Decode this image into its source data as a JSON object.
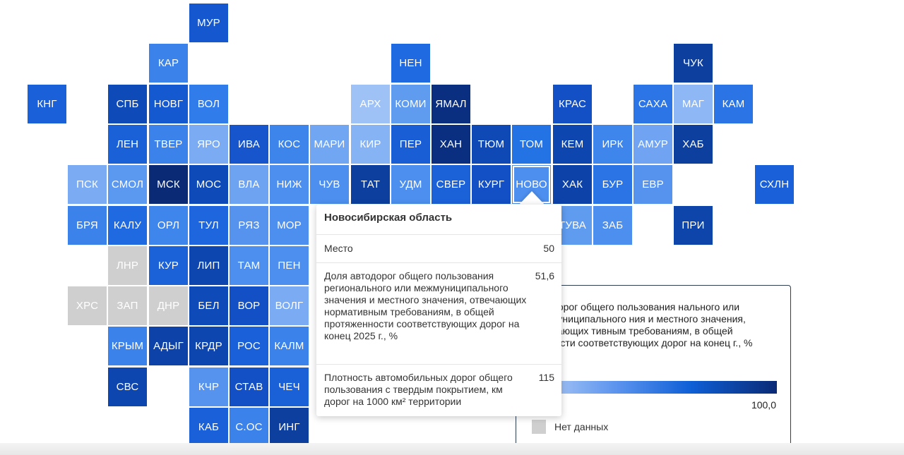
{
  "tiles": [
    {
      "code": "МУР",
      "col": 4,
      "row": 0,
      "color": "#1457cf"
    },
    {
      "code": "КАР",
      "col": 3,
      "row": 1,
      "color": "#3b83ea"
    },
    {
      "code": "НЕН",
      "col": 9,
      "row": 1,
      "color": "#1f6ae0"
    },
    {
      "code": "ЧУК",
      "col": 16,
      "row": 1,
      "color": "#0c3f9e"
    },
    {
      "code": "КНГ",
      "col": 0,
      "row": 2,
      "color": "#1a60d8"
    },
    {
      "code": "СПБ",
      "col": 2,
      "row": 2,
      "color": "#0e4bb8"
    },
    {
      "code": "НОВГ",
      "col": 3,
      "row": 2,
      "color": "#1459cf"
    },
    {
      "code": "ВОЛ",
      "col": 4,
      "row": 2,
      "color": "#2f7cea"
    },
    {
      "code": "АРХ",
      "col": 8,
      "row": 2,
      "color": "#9ec2f6"
    },
    {
      "code": "КОМИ",
      "col": 9,
      "row": 2,
      "color": "#5f9bef"
    },
    {
      "code": "ЯМАЛ",
      "col": 10,
      "row": 2,
      "color": "#0b2f80"
    },
    {
      "code": "КРАС",
      "col": 13,
      "row": 2,
      "color": "#1350c6"
    },
    {
      "code": "САХА",
      "col": 15,
      "row": 2,
      "color": "#2c75e6"
    },
    {
      "code": "МАГ",
      "col": 16,
      "row": 2,
      "color": "#8eb8f5"
    },
    {
      "code": "КАМ",
      "col": 17,
      "row": 2,
      "color": "#2a74e6"
    },
    {
      "code": "ЛЕН",
      "col": 2,
      "row": 3,
      "color": "#1a61d8"
    },
    {
      "code": "ТВЕР",
      "col": 3,
      "row": 3,
      "color": "#3b83ea"
    },
    {
      "code": "ЯРО",
      "col": 4,
      "row": 3,
      "color": "#7aabf3"
    },
    {
      "code": "ИВА",
      "col": 5,
      "row": 3,
      "color": "#1655cb"
    },
    {
      "code": "КОС",
      "col": 6,
      "row": 3,
      "color": "#3d85eb"
    },
    {
      "code": "МАРИ",
      "col": 7,
      "row": 3,
      "color": "#71a6f2"
    },
    {
      "code": "КИР",
      "col": 8,
      "row": 3,
      "color": "#86b3f4"
    },
    {
      "code": "ПЕР",
      "col": 9,
      "row": 3,
      "color": "#1a5ed6"
    },
    {
      "code": "ХАН",
      "col": 10,
      "row": 3,
      "color": "#0b2f80"
    },
    {
      "code": "ТЮМ",
      "col": 11,
      "row": 3,
      "color": "#0f49b6"
    },
    {
      "code": "ТОМ",
      "col": 12,
      "row": 3,
      "color": "#2473e4"
    },
    {
      "code": "КЕМ",
      "col": 13,
      "row": 3,
      "color": "#0e46b0"
    },
    {
      "code": "ИРК",
      "col": 14,
      "row": 3,
      "color": "#3e86ec"
    },
    {
      "code": "АМУР",
      "col": 15,
      "row": 3,
      "color": "#70a4f2"
    },
    {
      "code": "ХАБ",
      "col": 16,
      "row": 3,
      "color": "#0c3f9e"
    },
    {
      "code": "ПСК",
      "col": 1,
      "row": 4,
      "color": "#7aabf3"
    },
    {
      "code": "СМОЛ",
      "col": 2,
      "row": 4,
      "color": "#5b98ef"
    },
    {
      "code": "МСК",
      "col": 3,
      "row": 4,
      "color": "#0a2a75"
    },
    {
      "code": "МОС",
      "col": 4,
      "row": 4,
      "color": "#0e4bb8"
    },
    {
      "code": "ВЛА",
      "col": 5,
      "row": 4,
      "color": "#6ea3f2"
    },
    {
      "code": "НИЖ",
      "col": 6,
      "row": 4,
      "color": "#4d8fee"
    },
    {
      "code": "ЧУВ",
      "col": 7,
      "row": 4,
      "color": "#4d8fee"
    },
    {
      "code": "ТАТ",
      "col": 8,
      "row": 4,
      "color": "#0c3f9e"
    },
    {
      "code": "УДМ",
      "col": 9,
      "row": 4,
      "color": "#4d8fee"
    },
    {
      "code": "СВЕР",
      "col": 10,
      "row": 4,
      "color": "#1b62d9"
    },
    {
      "code": "КУРГ",
      "col": 11,
      "row": 4,
      "color": "#1350c6"
    },
    {
      "code": "НОВО",
      "col": 12,
      "row": 4,
      "color": "#4d8fee",
      "active": true
    },
    {
      "code": "ХАК",
      "col": 13,
      "row": 4,
      "color": "#0d42a8"
    },
    {
      "code": "БУР",
      "col": 14,
      "row": 4,
      "color": "#2a74e6"
    },
    {
      "code": "ЕВР",
      "col": 15,
      "row": 4,
      "color": "#5593ee"
    },
    {
      "code": "СХЛН",
      "col": 18,
      "row": 4,
      "color": "#1a60d8"
    },
    {
      "code": "БРЯ",
      "col": 1,
      "row": 5,
      "color": "#3b83ea"
    },
    {
      "code": "КАЛУ",
      "col": 2,
      "row": 5,
      "color": "#1f6ae0"
    },
    {
      "code": "ОРЛ",
      "col": 3,
      "row": 5,
      "color": "#3e86ec"
    },
    {
      "code": "ТУЛ",
      "col": 4,
      "row": 5,
      "color": "#1e66dd"
    },
    {
      "code": "РЯЗ",
      "col": 5,
      "row": 5,
      "color": "#5593ee"
    },
    {
      "code": "МОР",
      "col": 6,
      "row": 5,
      "color": "#4d8fee"
    },
    {
      "code": "ТУВА",
      "col": 13,
      "row": 5,
      "color": "#5f9bef"
    },
    {
      "code": "ЗАБ",
      "col": 14,
      "row": 5,
      "color": "#4d8fee"
    },
    {
      "code": "ПРИ",
      "col": 16,
      "row": 5,
      "color": "#0d45ab"
    },
    {
      "code": "ЛНР",
      "col": 2,
      "row": 6,
      "color": "#cfcfcf"
    },
    {
      "code": "КУР",
      "col": 3,
      "row": 6,
      "color": "#1b62d9"
    },
    {
      "code": "ЛИП",
      "col": 4,
      "row": 6,
      "color": "#0e46b0"
    },
    {
      "code": "ТАМ",
      "col": 5,
      "row": 6,
      "color": "#4d8fee"
    },
    {
      "code": "ПЕН",
      "col": 6,
      "row": 6,
      "color": "#4d8fee"
    },
    {
      "code": "ХРС",
      "col": 1,
      "row": 7,
      "color": "#cfcfcf"
    },
    {
      "code": "ЗАП",
      "col": 2,
      "row": 7,
      "color": "#cfcfcf"
    },
    {
      "code": "ДНР",
      "col": 3,
      "row": 7,
      "color": "#cfcfcf"
    },
    {
      "code": "БЕЛ",
      "col": 4,
      "row": 7,
      "color": "#0e4bb8"
    },
    {
      "code": "ВОР",
      "col": 5,
      "row": 7,
      "color": "#1350c6"
    },
    {
      "code": "ВОЛГ",
      "col": 6,
      "row": 7,
      "color": "#7aabf3"
    },
    {
      "code": "КРЫМ",
      "col": 2,
      "row": 8,
      "color": "#3b83ea"
    },
    {
      "code": "АДЫГ",
      "col": 3,
      "row": 8,
      "color": "#0d42a8"
    },
    {
      "code": "КРДР",
      "col": 4,
      "row": 8,
      "color": "#0e46b0"
    },
    {
      "code": "РОС",
      "col": 5,
      "row": 8,
      "color": "#1a60d8"
    },
    {
      "code": "КАЛМ",
      "col": 6,
      "row": 8,
      "color": "#3b83ea"
    },
    {
      "code": "СВС",
      "col": 2,
      "row": 9,
      "color": "#0e46b0"
    },
    {
      "code": "КЧР",
      "col": 4,
      "row": 9,
      "color": "#5593ee"
    },
    {
      "code": "СТАВ",
      "col": 5,
      "row": 9,
      "color": "#1350c6"
    },
    {
      "code": "ЧЕЧ",
      "col": 6,
      "row": 9,
      "color": "#1a61d8"
    },
    {
      "code": "КАБ",
      "col": 4,
      "row": 10,
      "color": "#1a60d8"
    },
    {
      "code": "С.ОС",
      "col": 5,
      "row": 10,
      "color": "#3b83ea"
    },
    {
      "code": "ИНГ",
      "col": 6,
      "row": 10,
      "color": "#0c3f9e"
    }
  ],
  "tooltip": {
    "title": "Новосибирская область",
    "rows": [
      {
        "label": "Место",
        "value": "50"
      },
      {
        "label": "Доля автодорог общего пользования регионального или межмуниципального значения и местного значения, отвечающих нормативным требованиям, в общей протяженности соответствующих дорог на конец 2025 г., %",
        "value": "51,6"
      },
      {
        "label": "Плотность автомобильных дорог общего пользования с твердым покрытием, км дорог на 1000 км² территории",
        "value": "115"
      }
    ]
  },
  "legend": {
    "title": "автодорог общего пользования нального или межмуниципального ния и местного значения, отвечающих тивным требованиям, в общей женности соответствующих дорог на конец г., %",
    "max": "100,0",
    "nodata": "Нет данных",
    "colors": {
      "low": "#b9d1f7",
      "high": "#0a2a75",
      "nodata": "#cfcfcf"
    }
  }
}
